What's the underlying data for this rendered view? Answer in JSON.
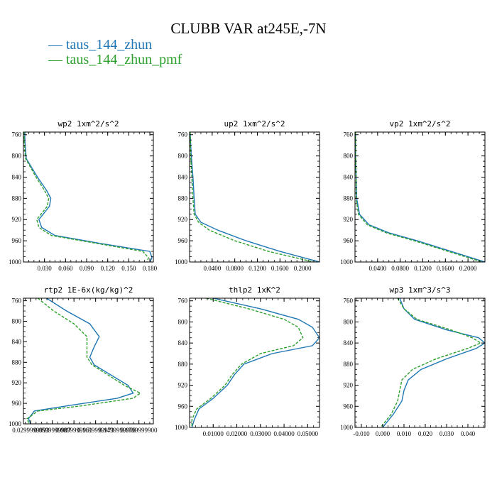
{
  "title": "CLUBB VAR at245E,-7N",
  "legend": [
    {
      "label": "taus_144_zhun",
      "color": "#1f77b4",
      "dash": "solid"
    },
    {
      "label": "taus_144_zhun_pmf",
      "color": "#2ca02c",
      "dash": "dashed"
    }
  ],
  "chart_data": [
    {
      "type": "line",
      "title": "wp2  1xm^2/s^2",
      "xlim": [
        0,
        0.185
      ],
      "ylim": [
        1000,
        755
      ],
      "xticks": [
        0.03,
        0.06,
        0.09,
        0.12,
        0.15,
        0.18
      ],
      "xtick_labels": [
        "0.030",
        "0.060",
        "0.090",
        "0.120",
        "0.150",
        "0.180"
      ],
      "yticks": [
        760,
        800,
        840,
        880,
        920,
        960,
        1000
      ],
      "series": [
        {
          "name": "taus_144_zhun",
          "x": [
            0.002,
            0.002,
            0.003,
            0.004,
            0.02,
            0.033,
            0.039,
            0.037,
            0.022,
            0.026,
            0.045,
            0.11,
            0.18,
            0.183,
            0.18
          ],
          "y": [
            755,
            770,
            790,
            805,
            840,
            865,
            880,
            895,
            920,
            935,
            950,
            965,
            980,
            992,
            1000
          ]
        },
        {
          "name": "taus_144_zhun_pmf",
          "x": [
            0.001,
            0.001,
            0.002,
            0.003,
            0.018,
            0.03,
            0.036,
            0.034,
            0.019,
            0.022,
            0.04,
            0.105,
            0.17,
            0.178,
            0.176
          ],
          "y": [
            755,
            770,
            790,
            805,
            840,
            865,
            880,
            895,
            920,
            935,
            950,
            965,
            980,
            992,
            1000
          ]
        }
      ]
    },
    {
      "type": "line",
      "title": "up2  1xm^2/s^2",
      "xlim": [
        0,
        0.23
      ],
      "ylim": [
        1000,
        755
      ],
      "xticks": [
        0.04,
        0.08,
        0.12,
        0.16,
        0.2
      ],
      "xtick_labels": [
        "0.0400",
        "0.0800",
        "0.1200",
        "0.1600",
        "0.2000"
      ],
      "yticks": [
        760,
        800,
        840,
        880,
        920,
        960,
        1000
      ],
      "series": [
        {
          "name": "taus_144_zhun",
          "x": [
            0.001,
            0.003,
            0.006,
            0.008,
            0.01,
            0.02,
            0.05,
            0.1,
            0.16,
            0.23
          ],
          "y": [
            755,
            800,
            840,
            880,
            910,
            925,
            940,
            960,
            980,
            1000
          ]
        },
        {
          "name": "taus_144_zhun_pmf",
          "x": [
            0.001,
            0.002,
            0.004,
            0.006,
            0.008,
            0.016,
            0.035,
            0.08,
            0.14,
            0.22
          ],
          "y": [
            755,
            800,
            840,
            880,
            910,
            925,
            940,
            960,
            980,
            1000
          ]
        }
      ]
    },
    {
      "type": "line",
      "title": "vp2  1xm^2/s^2",
      "xlim": [
        0,
        0.23
      ],
      "ylim": [
        1000,
        755
      ],
      "xticks": [
        0.04,
        0.08,
        0.12,
        0.16,
        0.2
      ],
      "xtick_labels": [
        "0.0400",
        "0.0800",
        "0.1200",
        "0.1600",
        "0.2000"
      ],
      "yticks": [
        760,
        800,
        840,
        880,
        920,
        960,
        1000
      ],
      "series": [
        {
          "name": "taus_144_zhun",
          "x": [
            0.001,
            0.001,
            0.002,
            0.003,
            0.008,
            0.025,
            0.06,
            0.11,
            0.17,
            0.23
          ],
          "y": [
            755,
            800,
            840,
            880,
            910,
            930,
            945,
            960,
            980,
            1000
          ]
        },
        {
          "name": "taus_144_zhun_pmf",
          "x": [
            0.001,
            0.001,
            0.002,
            0.002,
            0.006,
            0.022,
            0.055,
            0.105,
            0.165,
            0.225
          ],
          "y": [
            755,
            800,
            840,
            880,
            910,
            930,
            945,
            960,
            980,
            1000
          ]
        }
      ]
    },
    {
      "type": "line",
      "title": "rtp2  1E-6x(kg/kg)^2",
      "xlim": [
        0.02,
        0.2
      ],
      "ylim": [
        1000,
        755
      ],
      "xticks": [
        0.03,
        0.06,
        0.09,
        0.12,
        0.15,
        0.18
      ],
      "xtick_labels": [
        "0.0299999993",
        "0.0599999987",
        "0.0899999961",
        "0.1199999973",
        "0.1499999966",
        "0.1799999900"
      ],
      "yticks": [
        760,
        800,
        840,
        880,
        920,
        960,
        1000
      ],
      "series": [
        {
          "name": "taus_144_zhun",
          "x": [
            0.052,
            0.08,
            0.112,
            0.125,
            0.118,
            0.112,
            0.118,
            0.165,
            0.172,
            0.15,
            0.08,
            0.035,
            0.027,
            0.03
          ],
          "y": [
            755,
            780,
            805,
            830,
            850,
            870,
            885,
            925,
            940,
            950,
            965,
            975,
            990,
            1000
          ]
        },
        {
          "name": "taus_144_zhun_pmf",
          "x": [
            0.04,
            0.062,
            0.09,
            0.108,
            0.108,
            0.108,
            0.115,
            0.16,
            0.182,
            0.172,
            0.1,
            0.04,
            0.025,
            0.028
          ],
          "y": [
            755,
            780,
            805,
            830,
            850,
            870,
            885,
            925,
            940,
            950,
            965,
            975,
            990,
            1000
          ]
        }
      ]
    },
    {
      "type": "line",
      "title": "thlp2  1xK^2",
      "xlim": [
        0,
        0.055
      ],
      "ylim": [
        1000,
        755
      ],
      "xticks": [
        0.01,
        0.02,
        0.03,
        0.04,
        0.05
      ],
      "xtick_labels": [
        "0.01000",
        "0.02000",
        "0.03000",
        "0.04000",
        "0.05000"
      ],
      "yticks": [
        760,
        800,
        840,
        880,
        920,
        960,
        1000
      ],
      "series": [
        {
          "name": "taus_144_zhun",
          "x": [
            0.01,
            0.03,
            0.046,
            0.052,
            0.055,
            0.052,
            0.035,
            0.023,
            0.019,
            0.016,
            0.01,
            0.004,
            0.002,
            0.001
          ],
          "y": [
            755,
            775,
            795,
            810,
            830,
            845,
            860,
            880,
            900,
            920,
            945,
            965,
            985,
            1000
          ]
        },
        {
          "name": "taus_144_zhun_pmf",
          "x": [
            0.007,
            0.025,
            0.04,
            0.046,
            0.048,
            0.044,
            0.03,
            0.022,
            0.018,
            0.015,
            0.009,
            0.003,
            0.001,
            0.001
          ],
          "y": [
            755,
            775,
            795,
            810,
            830,
            845,
            860,
            880,
            900,
            920,
            945,
            965,
            985,
            1000
          ]
        }
      ]
    },
    {
      "type": "line",
      "title": "wp3  1xm^3/s^3",
      "xlim": [
        -0.013,
        0.048
      ],
      "ylim": [
        1000,
        755
      ],
      "xticks": [
        -0.01,
        0,
        0.01,
        0.02,
        0.03,
        0.04
      ],
      "xtick_labels": [
        "-0.010",
        "0.000",
        "0.010",
        "0.020",
        "0.030",
        "0.040"
      ],
      "yticks": [
        760,
        800,
        840,
        880,
        920,
        960,
        1000
      ],
      "series": [
        {
          "name": "taus_144_zhun",
          "x": [
            0.008,
            0.01,
            0.015,
            0.03,
            0.045,
            0.048,
            0.044,
            0.03,
            0.018,
            0.012,
            0.01,
            0.009,
            0.005,
            0.0
          ],
          "y": [
            755,
            775,
            795,
            815,
            830,
            840,
            850,
            870,
            890,
            910,
            930,
            950,
            975,
            1000
          ]
        },
        {
          "name": "taus_144_zhun_pmf",
          "x": [
            0.007,
            0.01,
            0.016,
            0.032,
            0.042,
            0.046,
            0.04,
            0.025,
            0.014,
            0.009,
            0.008,
            0.007,
            0.004,
            -0.001
          ],
          "y": [
            755,
            775,
            795,
            815,
            830,
            840,
            850,
            870,
            890,
            910,
            930,
            950,
            975,
            1000
          ]
        }
      ]
    }
  ]
}
